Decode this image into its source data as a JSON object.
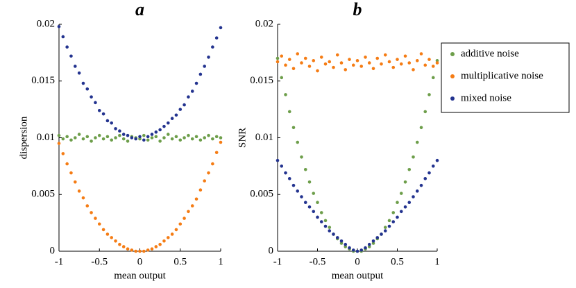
{
  "chart_data": [
    {
      "type": "scatter",
      "title": "a",
      "x_label": "mean output",
      "y_label": "dispersion",
      "x": [
        -1,
        -0.95,
        -0.9,
        -0.85,
        -0.8,
        -0.75,
        -0.7,
        -0.65,
        -0.6,
        -0.55,
        -0.5,
        -0.45,
        -0.4,
        -0.35,
        -0.3,
        -0.25,
        -0.2,
        -0.15,
        -0.1,
        -0.05,
        0,
        0.05,
        0.1,
        0.15,
        0.2,
        0.25,
        0.3,
        0.35,
        0.4,
        0.45,
        0.5,
        0.55,
        0.6,
        0.65,
        0.7,
        0.75,
        0.8,
        0.85,
        0.9,
        0.95,
        1
      ],
      "series": [
        {
          "color": "#6d9e4a",
          "values": [
            0.0102,
            0.0099,
            0.0101,
            0.0098,
            0.01,
            0.0103,
            0.0099,
            0.0101,
            0.0097,
            0.01,
            0.0102,
            0.0099,
            0.0101,
            0.0098,
            0.01,
            0.0102,
            0.0099,
            0.0097,
            0.0101,
            0.01,
            0.0099,
            0.0102,
            0.0098,
            0.01,
            0.0101,
            0.0097,
            0.01,
            0.0103,
            0.0099,
            0.0101,
            0.0098,
            0.01,
            0.0102,
            0.0099,
            0.0101,
            0.0098,
            0.01,
            0.0102,
            0.0099,
            0.0101,
            0.01
          ]
        },
        {
          "color": "#f57c14",
          "values": [
            0.0095,
            0.0086,
            0.0077,
            0.0069,
            0.0061,
            0.0053,
            0.0047,
            0.004,
            0.0034,
            0.0029,
            0.0024,
            0.0019,
            0.0015,
            0.0012,
            0.0009,
            0.0006,
            0.0004,
            0.0002,
            0.0001,
            0.0,
            0.0,
            0.0,
            0.0001,
            0.0002,
            0.0004,
            0.0006,
            0.0009,
            0.0012,
            0.0015,
            0.0019,
            0.0024,
            0.0029,
            0.0035,
            0.004,
            0.0046,
            0.0054,
            0.0062,
            0.0069,
            0.0077,
            0.0087,
            0.0096
          ]
        },
        {
          "color": "#23338f",
          "values": [
            0.0198,
            0.0189,
            0.018,
            0.0172,
            0.0163,
            0.0157,
            0.0148,
            0.0143,
            0.0136,
            0.0131,
            0.0124,
            0.0121,
            0.0115,
            0.0113,
            0.0108,
            0.0106,
            0.0103,
            0.0102,
            0.01,
            0.0099,
            0.0101,
            0.0098,
            0.0101,
            0.0103,
            0.0105,
            0.0107,
            0.011,
            0.0113,
            0.0117,
            0.012,
            0.0125,
            0.0129,
            0.0136,
            0.0141,
            0.0148,
            0.0156,
            0.0163,
            0.0171,
            0.018,
            0.0188,
            0.0197
          ]
        }
      ],
      "xlim": [
        -1,
        1
      ],
      "xticks": [
        -1,
        -0.5,
        0,
        0.5,
        1
      ],
      "ylim": [
        0,
        0.02
      ],
      "yticks": [
        0,
        0.005,
        0.01,
        0.015,
        0.02
      ]
    },
    {
      "type": "scatter",
      "title": "b",
      "x_label": "mean output",
      "y_label": "SNR",
      "x": [
        -1,
        -0.95,
        -0.9,
        -0.85,
        -0.8,
        -0.75,
        -0.7,
        -0.65,
        -0.6,
        -0.55,
        -0.5,
        -0.45,
        -0.4,
        -0.35,
        -0.3,
        -0.25,
        -0.2,
        -0.15,
        -0.1,
        -0.05,
        0,
        0.05,
        0.1,
        0.15,
        0.2,
        0.25,
        0.3,
        0.35,
        0.4,
        0.45,
        0.5,
        0.55,
        0.6,
        0.65,
        0.7,
        0.75,
        0.8,
        0.85,
        0.9,
        0.95,
        1
      ],
      "series": [
        {
          "name": "additive noise",
          "color": "#6d9e4a",
          "values": [
            0.017,
            0.0153,
            0.0138,
            0.0123,
            0.0109,
            0.0096,
            0.0083,
            0.0072,
            0.0061,
            0.0051,
            0.0043,
            0.0034,
            0.0027,
            0.0021,
            0.0015,
            0.0011,
            0.0007,
            0.0004,
            0.0002,
            0.0,
            0.0,
            0.0,
            0.0002,
            0.0004,
            0.0007,
            0.0011,
            0.0015,
            0.0021,
            0.0027,
            0.0034,
            0.0043,
            0.0051,
            0.0061,
            0.0072,
            0.0083,
            0.0096,
            0.0109,
            0.0123,
            0.0138,
            0.0153,
            0.0168
          ]
        },
        {
          "name": "multiplicative noise",
          "color": "#f57c14",
          "values": [
            0.0167,
            0.0172,
            0.0164,
            0.0169,
            0.0161,
            0.0174,
            0.0166,
            0.017,
            0.0163,
            0.0168,
            0.0159,
            0.0171,
            0.0165,
            0.0167,
            0.0162,
            0.0173,
            0.0166,
            0.016,
            0.0169,
            0.0164,
            0.0168,
            0.0163,
            0.0171,
            0.0166,
            0.0161,
            0.017,
            0.0165,
            0.0173,
            0.0167,
            0.0162,
            0.0169,
            0.0165,
            0.0172,
            0.0166,
            0.016,
            0.0168,
            0.0174,
            0.0164,
            0.0169,
            0.0163,
            0.0166
          ]
        },
        {
          "name": "mixed noise",
          "color": "#23338f",
          "values": [
            0.008,
            0.0075,
            0.0069,
            0.0064,
            0.0058,
            0.0053,
            0.0048,
            0.0043,
            0.0039,
            0.0035,
            0.003,
            0.0026,
            0.0022,
            0.0018,
            0.0015,
            0.0012,
            0.0009,
            0.0006,
            0.0003,
            0.0001,
            0.0,
            0.0001,
            0.0003,
            0.0006,
            0.0009,
            0.0012,
            0.0015,
            0.0018,
            0.0022,
            0.0026,
            0.003,
            0.0035,
            0.0039,
            0.0043,
            0.0048,
            0.0053,
            0.0058,
            0.0064,
            0.0069,
            0.0075,
            0.008
          ]
        }
      ],
      "xlim": [
        -1,
        1
      ],
      "xticks": [
        -1,
        -0.5,
        0,
        0.5,
        1
      ],
      "ylim": [
        0,
        0.02
      ],
      "yticks": [
        0,
        0.005,
        0.01,
        0.015,
        0.02
      ],
      "legend": "right-outside"
    }
  ]
}
